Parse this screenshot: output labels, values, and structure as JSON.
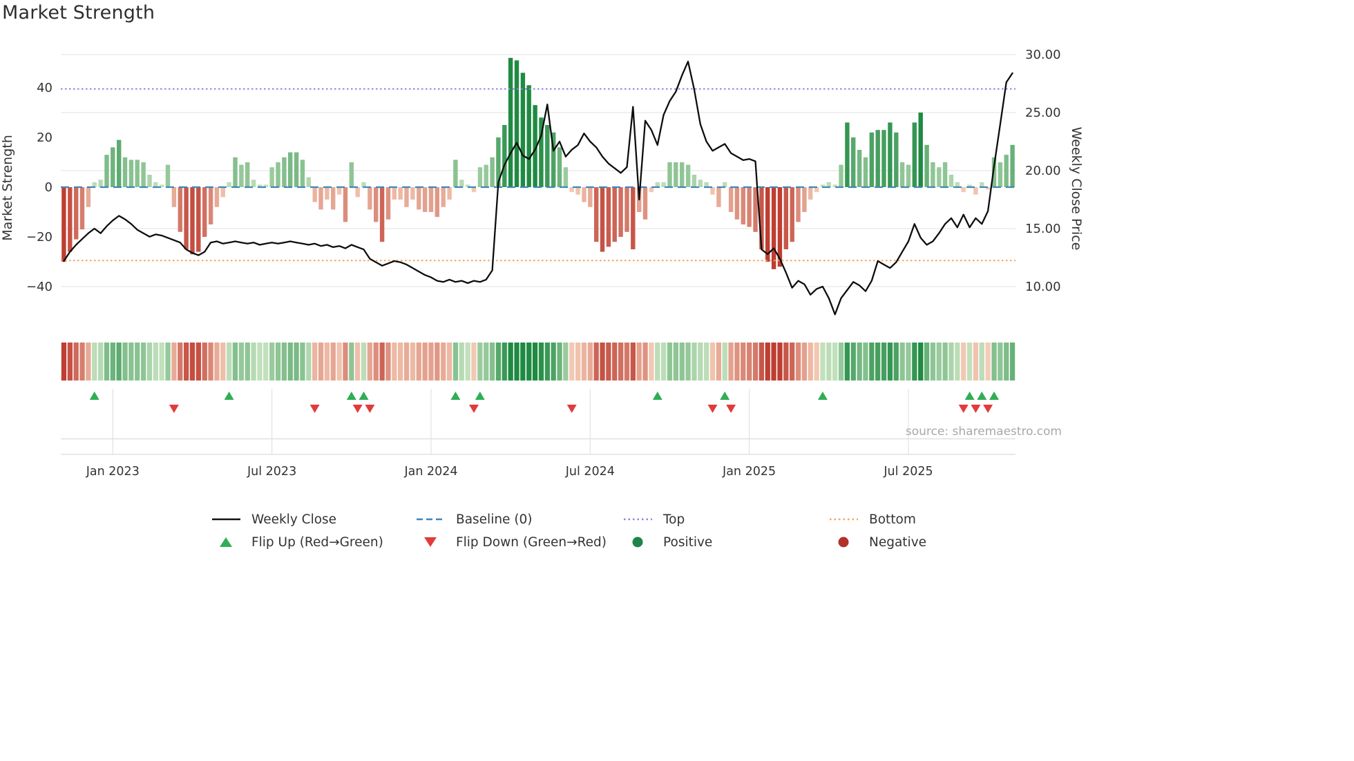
{
  "title": "Market Strength",
  "source": "source: sharemaestro.com",
  "chart_data": {
    "type": "combo: weekly strength bars (left axis) + weekly close line (right axis) + heatmap strip + flip markers",
    "x": {
      "frequency": "weekly",
      "ticks": [
        {
          "week": 8,
          "label": "Jan 2023"
        },
        {
          "week": 34,
          "label": "Jul 2023"
        },
        {
          "week": 60,
          "label": "Jan 2024"
        },
        {
          "week": 86,
          "label": "Jul 2024"
        },
        {
          "week": 112,
          "label": "Jan 2025"
        },
        {
          "week": 138,
          "label": "Jul 2025"
        }
      ]
    },
    "left_axis": {
      "label": "Market Strength",
      "ticks": [
        {
          "v": 40,
          "label": "40"
        },
        {
          "v": 20,
          "label": "20"
        },
        {
          "v": 0,
          "label": "0"
        },
        {
          "v": -20,
          "label": "−20"
        },
        {
          "v": -40,
          "label": "−40"
        }
      ]
    },
    "right_axis": {
      "label": "Weekly Close Price",
      "ticks": [
        {
          "v": 30,
          "label": "30.00"
        },
        {
          "v": 25,
          "label": "25.00"
        },
        {
          "v": 20,
          "label": "20.00"
        },
        {
          "v": 15,
          "label": "15.00"
        },
        {
          "v": 10,
          "label": "10.00"
        }
      ]
    },
    "series": [
      {
        "name": "Market Strength",
        "type": "bar",
        "axis": "left",
        "values": [
          -30,
          -26,
          -21,
          -17,
          -8,
          2,
          3,
          13,
          16,
          19,
          12,
          11,
          11,
          10,
          5,
          2,
          1,
          9,
          -8,
          -18,
          -25,
          -27,
          -26,
          -20,
          -15,
          -8,
          -4,
          2,
          12,
          9,
          10,
          3,
          1,
          1,
          8,
          10,
          12,
          14,
          14,
          11,
          4,
          -6,
          -9,
          -5,
          -9,
          -3,
          -14,
          10,
          -4,
          2,
          -9,
          -14,
          -22,
          -13,
          -5,
          -5,
          -8,
          -5,
          -9,
          -10,
          -10,
          -12,
          -8,
          -5,
          11,
          3,
          1,
          -2,
          8,
          9,
          12,
          20,
          25,
          52,
          51,
          46,
          41,
          33,
          28,
          25,
          22,
          16,
          8,
          -2,
          -3,
          -6,
          -8,
          -22,
          -26,
          -24,
          -22,
          -20,
          -18,
          -25,
          -10,
          -13,
          -2,
          2,
          2,
          10,
          10,
          10,
          9,
          5,
          3,
          2,
          -3,
          -8,
          2,
          -10,
          -13,
          -15,
          -16,
          -18,
          -25,
          -30,
          -33,
          -32,
          -25,
          -22,
          -14,
          -10,
          -5,
          -2,
          1,
          2,
          1,
          9,
          26,
          20,
          15,
          12,
          22,
          23,
          23,
          26,
          22,
          10,
          9,
          26,
          30,
          17,
          10,
          8,
          10,
          5,
          2,
          -2,
          1,
          -3,
          2,
          -1,
          12,
          10,
          13,
          17
        ]
      },
      {
        "name": "Weekly Close",
        "type": "line",
        "axis": "right",
        "values": [
          12.2,
          13.0,
          13.6,
          14.1,
          14.6,
          15.0,
          14.6,
          15.2,
          15.7,
          16.1,
          15.8,
          15.4,
          14.9,
          14.6,
          14.3,
          14.5,
          14.4,
          14.2,
          14.0,
          13.8,
          13.2,
          12.9,
          12.7,
          13.0,
          13.8,
          13.9,
          13.7,
          13.8,
          13.9,
          13.8,
          13.7,
          13.8,
          13.6,
          13.7,
          13.8,
          13.7,
          13.8,
          13.9,
          13.8,
          13.7,
          13.6,
          13.7,
          13.5,
          13.6,
          13.4,
          13.5,
          13.3,
          13.6,
          13.4,
          13.2,
          12.4,
          12.1,
          11.8,
          12.0,
          12.2,
          12.1,
          11.9,
          11.6,
          11.3,
          11.0,
          10.8,
          10.5,
          10.4,
          10.6,
          10.4,
          10.5,
          10.3,
          10.5,
          10.4,
          10.6,
          11.4,
          19.0,
          20.5,
          21.5,
          22.4,
          21.3,
          21.0,
          21.8,
          23.0,
          25.7,
          21.7,
          22.5,
          21.2,
          21.8,
          22.2,
          23.2,
          22.5,
          22.0,
          21.2,
          20.6,
          20.2,
          19.8,
          20.3,
          25.5,
          17.5,
          24.3,
          23.5,
          22.2,
          24.8,
          26.0,
          26.8,
          28.2,
          29.4,
          27.0,
          24.0,
          22.5,
          21.7,
          22.0,
          22.3,
          21.5,
          21.2,
          20.9,
          21.0,
          20.8,
          13.2,
          12.8,
          13.3,
          12.4,
          11.2,
          9.9,
          10.5,
          10.2,
          9.3,
          9.8,
          10.0,
          9.0,
          7.6,
          9.0,
          9.7,
          10.4,
          10.1,
          9.6,
          10.5,
          12.2,
          11.9,
          11.6,
          12.1,
          13.0,
          13.9,
          15.4,
          14.2,
          13.6,
          13.9,
          14.6,
          15.4,
          15.9,
          15.1,
          16.2,
          15.1,
          15.9,
          15.4,
          16.5,
          20.4,
          24.0,
          27.6,
          28.4
        ]
      }
    ],
    "reference_lines": [
      {
        "name": "Baseline (0)",
        "value": 0,
        "axis": "left",
        "style": "dashed",
        "color": "#3f86b8"
      },
      {
        "name": "Top",
        "value": 39.5,
        "axis": "left",
        "style": "dotted",
        "color": "#9b7ce0"
      },
      {
        "name": "Bottom",
        "value": -29.5,
        "axis": "left",
        "style": "dotted",
        "color": "#f2a45f"
      }
    ],
    "markers": {
      "flip_up_weeks": [
        5,
        27,
        47,
        49,
        64,
        68,
        97,
        108,
        124,
        148,
        150,
        152
      ],
      "flip_down_weeks": [
        18,
        41,
        48,
        50,
        67,
        83,
        106,
        109,
        147,
        149,
        151
      ]
    },
    "heatmap_strip": "weekly strength values rendered as red-to-green colored cells (same data as bar series)",
    "colors": {
      "line": "#0d0d0d",
      "bar_positive_dark": "#1f8a42",
      "bar_positive_light": "#c7e3bf",
      "bar_negative_dark": "#be3e32",
      "bar_negative_light": "#f6d2bc",
      "flip_up": "#2fae55",
      "flip_down": "#e23b3b",
      "positive_dot": "#1e8449",
      "negative_dot": "#b03228"
    }
  },
  "legend": [
    {
      "label": "Weekly Close",
      "swatch": "line",
      "color": "#111111"
    },
    {
      "label": "Baseline (0)",
      "swatch": "dashed-line",
      "color": "#3f86b8"
    },
    {
      "label": "Top",
      "swatch": "dotted-line",
      "color": "#9b7ce0"
    },
    {
      "label": "Bottom",
      "swatch": "dotted-line",
      "color": "#f2a45f"
    },
    {
      "label": "Flip Up (Red→Green)",
      "swatch": "triangle-up",
      "color": "#2fae55"
    },
    {
      "label": "Flip Down (Green→Red)",
      "swatch": "triangle-down",
      "color": "#e23b3b"
    },
    {
      "label": "Positive",
      "swatch": "circle",
      "color": "#1e8449"
    },
    {
      "label": "Negative",
      "swatch": "circle",
      "color": "#b03228"
    }
  ]
}
